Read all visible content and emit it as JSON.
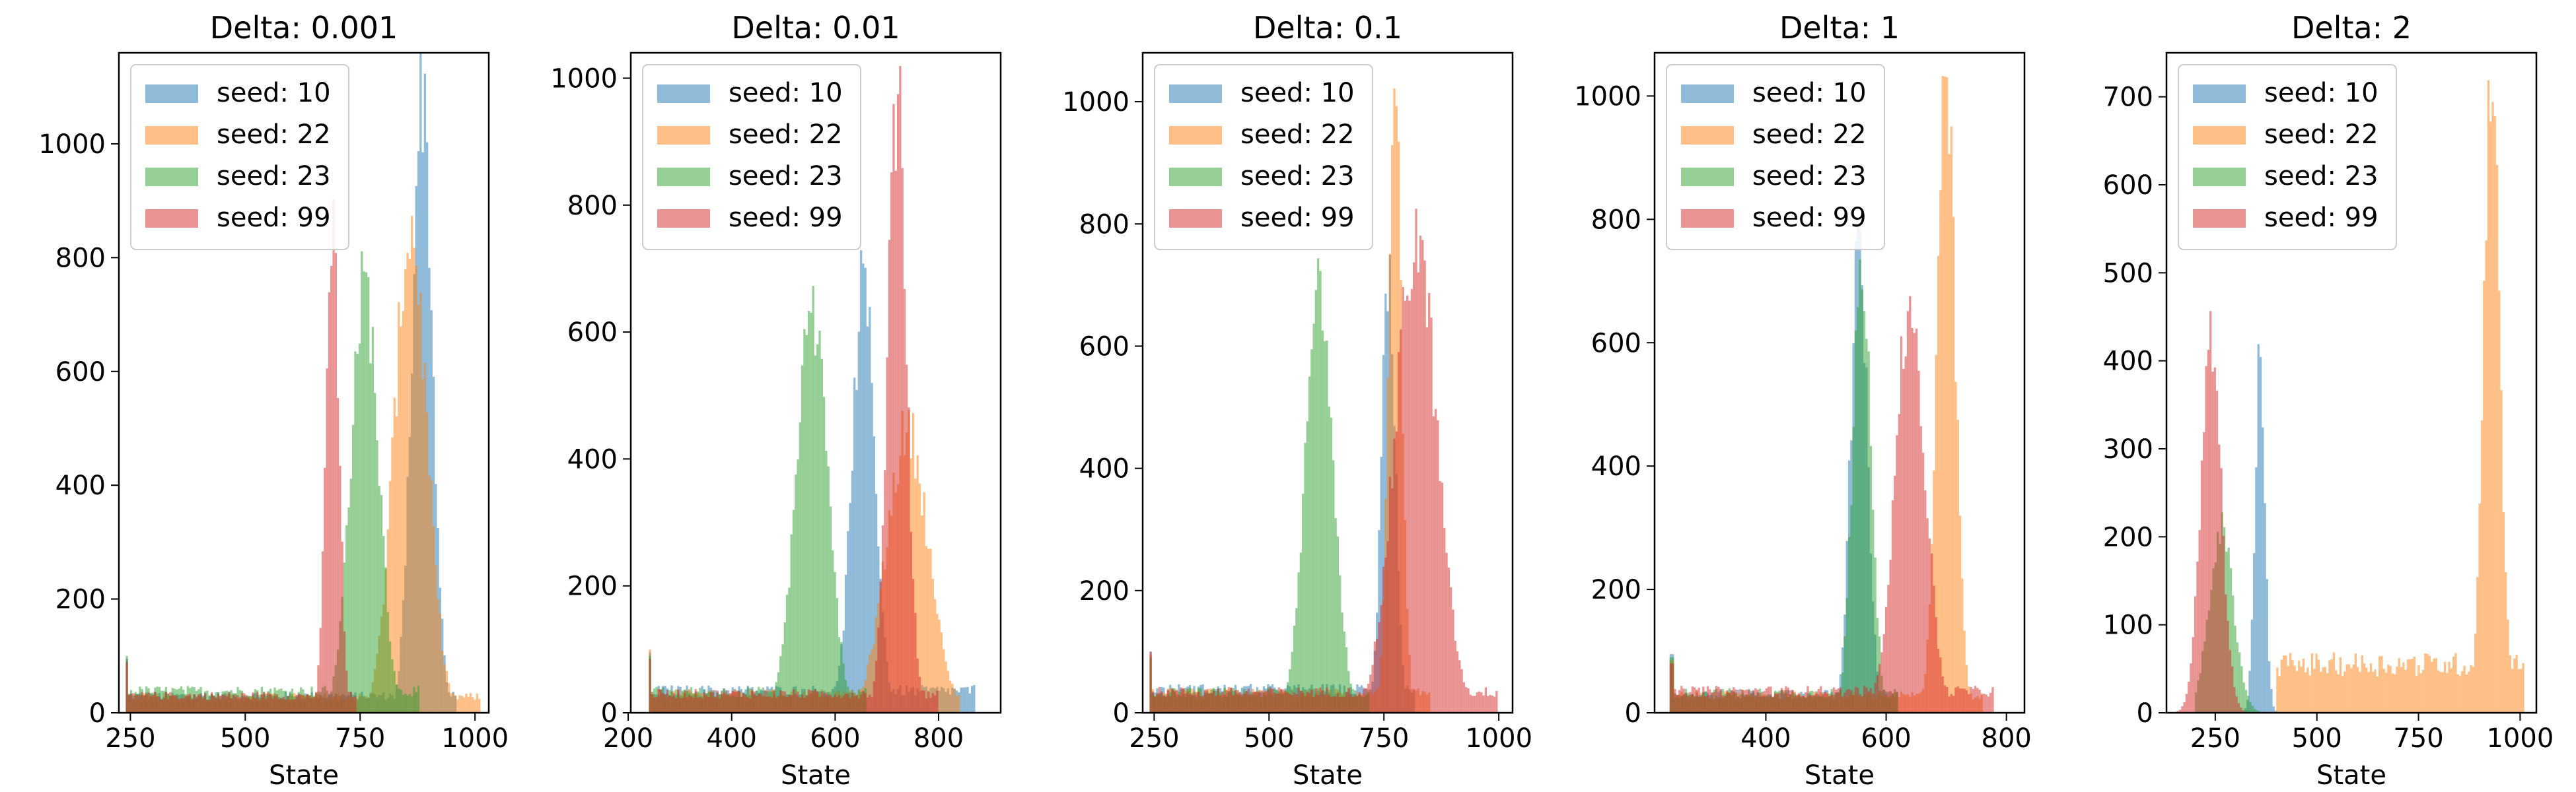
{
  "colors": {
    "seed_10": "#1f77b4",
    "seed_22": "#ff7f0e",
    "seed_23": "#2ca02c",
    "seed_99": "#d62728",
    "axis": "#000000",
    "legend_border": "#cccccc"
  },
  "series_alpha": 0.5,
  "legend_placement": "upper-left",
  "chart_data": [
    {
      "type": "histogram",
      "title": "Delta: 0.001",
      "xlabel": "State",
      "ylabel": "",
      "xlim": [
        225,
        1030
      ],
      "ylim": [
        0,
        1160
      ],
      "xticks": [
        250,
        500,
        750,
        1000
      ],
      "xtick_labels": [
        "250",
        "500",
        "750",
        "1000"
      ],
      "yticks": [
        0,
        200,
        400,
        600,
        800,
        1000
      ],
      "ytick_labels": [
        "0",
        "200",
        "400",
        "600",
        "800",
        "1000"
      ],
      "grid": false,
      "series": [
        {
          "name": "seed: 10",
          "color_key": "seed_10",
          "base": 30,
          "start": 240,
          "spike": 95,
          "peak_center": 885,
          "peak_height": 1110,
          "peak_width": 22,
          "peak_end": 960
        },
        {
          "name": "seed: 22",
          "color_key": "seed_22",
          "base": 28,
          "start": 240,
          "spike": 85,
          "peak_center": 860,
          "peak_height": 860,
          "peak_width": 35,
          "peak_end": 1010
        },
        {
          "name": "seed: 23",
          "color_key": "seed_23",
          "base": 38,
          "start": 240,
          "spike": 100,
          "peak_center": 760,
          "peak_height": 760,
          "peak_width": 30,
          "peak_end": 880
        },
        {
          "name": "seed: 99",
          "color_key": "seed_99",
          "base": 30,
          "start": 240,
          "spike": 90,
          "peak_center": 690,
          "peak_height": 880,
          "peak_width": 14,
          "peak_end": 740
        }
      ]
    },
    {
      "type": "histogram",
      "title": "Delta: 0.01",
      "xlabel": "State",
      "ylabel": "",
      "xlim": [
        205,
        920
      ],
      "ylim": [
        0,
        1040
      ],
      "xticks": [
        200,
        400,
        600,
        800
      ],
      "xtick_labels": [
        "200",
        "400",
        "600",
        "800"
      ],
      "yticks": [
        0,
        200,
        400,
        600,
        800,
        1000
      ],
      "ytick_labels": [
        "0",
        "200",
        "400",
        "600",
        "800",
        "1000"
      ],
      "grid": false,
      "series": [
        {
          "name": "seed: 10",
          "color_key": "seed_10",
          "base": 35,
          "start": 240,
          "spike": 95,
          "peak_center": 655,
          "peak_height": 680,
          "peak_width": 22,
          "peak_end": 870
        },
        {
          "name": "seed: 22",
          "color_key": "seed_22",
          "base": 30,
          "start": 240,
          "spike": 100,
          "peak_center": 740,
          "peak_height": 450,
          "peak_width": 40,
          "peak_end": 840
        },
        {
          "name": "seed: 23",
          "color_key": "seed_23",
          "base": 33,
          "start": 240,
          "spike": 90,
          "peak_center": 555,
          "peak_height": 640,
          "peak_width": 30,
          "peak_end": 660
        },
        {
          "name": "seed: 99",
          "color_key": "seed_99",
          "base": 30,
          "start": 240,
          "spike": 85,
          "peak_center": 720,
          "peak_height": 980,
          "peak_width": 18,
          "peak_end": 800
        }
      ]
    },
    {
      "type": "histogram",
      "title": "Delta: 0.1",
      "xlabel": "State",
      "ylabel": "",
      "xlim": [
        225,
        1030
      ],
      "ylim": [
        0,
        1080
      ],
      "xticks": [
        250,
        500,
        750,
        1000
      ],
      "xtick_labels": [
        "250",
        "500",
        "750",
        "1000"
      ],
      "yticks": [
        0,
        200,
        400,
        600,
        800,
        1000
      ],
      "ytick_labels": [
        "0",
        "200",
        "400",
        "600",
        "800",
        "1000"
      ],
      "grid": false,
      "series": [
        {
          "name": "seed: 10",
          "color_key": "seed_10",
          "base": 38,
          "start": 240,
          "spike": 100,
          "peak_center": 760,
          "peak_height": 700,
          "peak_width": 15,
          "peak_end": 820
        },
        {
          "name": "seed: 22",
          "color_key": "seed_22",
          "base": 32,
          "start": 240,
          "spike": 95,
          "peak_center": 775,
          "peak_height": 1030,
          "peak_width": 14,
          "peak_end": 850
        },
        {
          "name": "seed: 23",
          "color_key": "seed_23",
          "base": 33,
          "start": 240,
          "spike": 90,
          "peak_center": 610,
          "peak_height": 710,
          "peak_width": 30,
          "peak_end": 720
        },
        {
          "name": "seed: 99",
          "color_key": "seed_99",
          "base": 34,
          "start": 240,
          "spike": 100,
          "peak_center": 820,
          "peak_height": 780,
          "peak_width": 45,
          "peak_end": 1000
        }
      ]
    },
    {
      "type": "histogram",
      "title": "Delta: 1",
      "xlabel": "State",
      "ylabel": "",
      "xlim": [
        215,
        830
      ],
      "ylim": [
        0,
        1070
      ],
      "xticks": [
        400,
        600,
        800
      ],
      "xtick_labels": [
        "400",
        "600",
        "800"
      ],
      "yticks": [
        0,
        200,
        400,
        600,
        800,
        1000
      ],
      "ytick_labels": [
        "0",
        "200",
        "400",
        "600",
        "800",
        "1000"
      ],
      "grid": false,
      "series": [
        {
          "name": "seed: 10",
          "color_key": "seed_10",
          "base": 30,
          "start": 240,
          "spike": 95,
          "peak_center": 555,
          "peak_height": 760,
          "peak_width": 14,
          "peak_end": 620
        },
        {
          "name": "seed: 22",
          "color_key": "seed_22",
          "base": 28,
          "start": 240,
          "spike": 85,
          "peak_center": 700,
          "peak_height": 1020,
          "peak_width": 15,
          "peak_end": 760
        },
        {
          "name": "seed: 23",
          "color_key": "seed_23",
          "base": 32,
          "start": 240,
          "spike": 90,
          "peak_center": 560,
          "peak_height": 740,
          "peak_width": 15,
          "peak_end": 620
        },
        {
          "name": "seed: 99",
          "color_key": "seed_99",
          "base": 35,
          "start": 240,
          "spike": 80,
          "peak_center": 640,
          "peak_height": 660,
          "peak_width": 25,
          "peak_end": 780
        }
      ]
    },
    {
      "type": "histogram",
      "title": "Delta: 2",
      "xlabel": "State",
      "ylabel": "",
      "xlim": [
        130,
        1040
      ],
      "ylim": [
        0,
        750
      ],
      "xticks": [
        250,
        500,
        750,
        1000
      ],
      "xtick_labels": [
        "250",
        "500",
        "750",
        "1000"
      ],
      "yticks": [
        0,
        100,
        200,
        300,
        400,
        500,
        600,
        700
      ],
      "ytick_labels": [
        "0",
        "100",
        "200",
        "300",
        "400",
        "500",
        "600",
        "700"
      ],
      "grid": false,
      "series": [
        {
          "name": "seed: 10",
          "color_key": "seed_10",
          "base": 0,
          "start": 300,
          "spike": 0,
          "peak_center": 360,
          "peak_height": 410,
          "peak_width": 12,
          "peak_end": 420
        },
        {
          "name": "seed: 22",
          "color_key": "seed_22",
          "base": 55,
          "start": 400,
          "spike": 0,
          "peak_center": 930,
          "peak_height": 720,
          "peak_width": 20,
          "peak_end": 1010
        },
        {
          "name": "seed: 23",
          "color_key": "seed_23",
          "base": 0,
          "start": 200,
          "spike": 0,
          "peak_center": 265,
          "peak_height": 210,
          "peak_width": 30,
          "peak_end": 400
        },
        {
          "name": "seed: 99",
          "color_key": "seed_99",
          "base": 0,
          "start": 150,
          "spike": 0,
          "peak_center": 240,
          "peak_height": 420,
          "peak_width": 25,
          "peak_end": 420
        }
      ]
    }
  ]
}
